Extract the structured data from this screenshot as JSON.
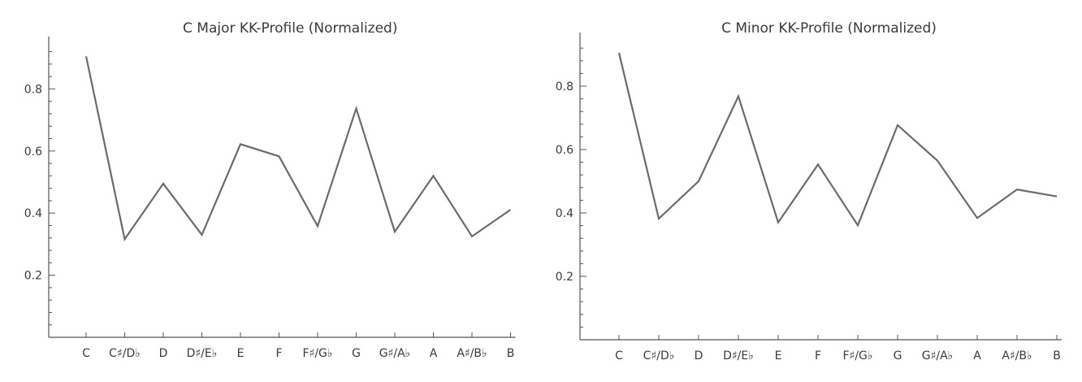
{
  "chart_data": [
    {
      "type": "line",
      "title": "C Major KK-Profile (Normalized)",
      "categories": [
        "C",
        "C♯/D♭",
        "D",
        "D♯/E♭",
        "E",
        "F",
        "F♯/G♭",
        "G",
        "G♯/A♭",
        "A",
        "A♯/B♭",
        "B"
      ],
      "values": [
        0.905,
        0.316,
        0.495,
        0.33,
        0.622,
        0.583,
        0.358,
        0.737,
        0.34,
        0.52,
        0.325,
        0.411
      ],
      "ylim": [
        0,
        0.93
      ],
      "yticks": [
        0.2,
        0.4,
        0.6,
        0.8
      ],
      "ytick_labels": [
        "0.2",
        "0.4",
        "0.6",
        "0.8"
      ],
      "color": "#6b6b6b",
      "grid": false
    },
    {
      "type": "line",
      "title": "C Minor KK-Profile (Normalized)",
      "categories": [
        "C",
        "C♯/D♭",
        "D",
        "D♯/E♭",
        "E",
        "F",
        "F♯/G♭",
        "G",
        "G♯/A♭",
        "A",
        "A♯/B♭",
        "B"
      ],
      "values": [
        0.905,
        0.382,
        0.5,
        0.768,
        0.37,
        0.553,
        0.361,
        0.677,
        0.565,
        0.384,
        0.474,
        0.452
      ],
      "ylim": [
        0,
        0.93
      ],
      "yticks": [
        0.2,
        0.4,
        0.6,
        0.8
      ],
      "ytick_labels": [
        "0.2",
        "0.4",
        "0.6",
        "0.8"
      ],
      "color": "#6b6b6b",
      "grid": false
    }
  ]
}
